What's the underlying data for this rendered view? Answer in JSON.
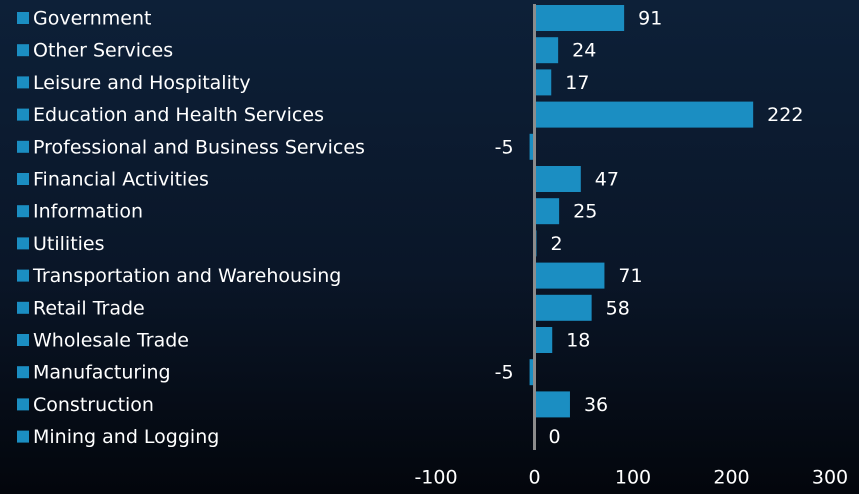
{
  "chart_data": {
    "type": "bar",
    "orientation": "horizontal",
    "categories": [
      "Government",
      "Other Services",
      "Leisure and Hospitality",
      "Education and Health Services",
      "Professional and Business Services",
      "Financial Activities",
      "Information",
      "Utilities",
      "Transportation and Warehousing",
      "Retail Trade",
      "Wholesale Trade",
      "Manufacturing",
      "Construction",
      "Mining and Logging"
    ],
    "values": [
      91,
      24,
      17,
      222,
      -5,
      47,
      25,
      2,
      71,
      58,
      18,
      -5,
      36,
      0
    ],
    "color": "#1b8ec2",
    "xlim": [
      -100,
      300
    ],
    "xticks": [
      -100,
      0,
      100,
      200,
      300
    ]
  }
}
